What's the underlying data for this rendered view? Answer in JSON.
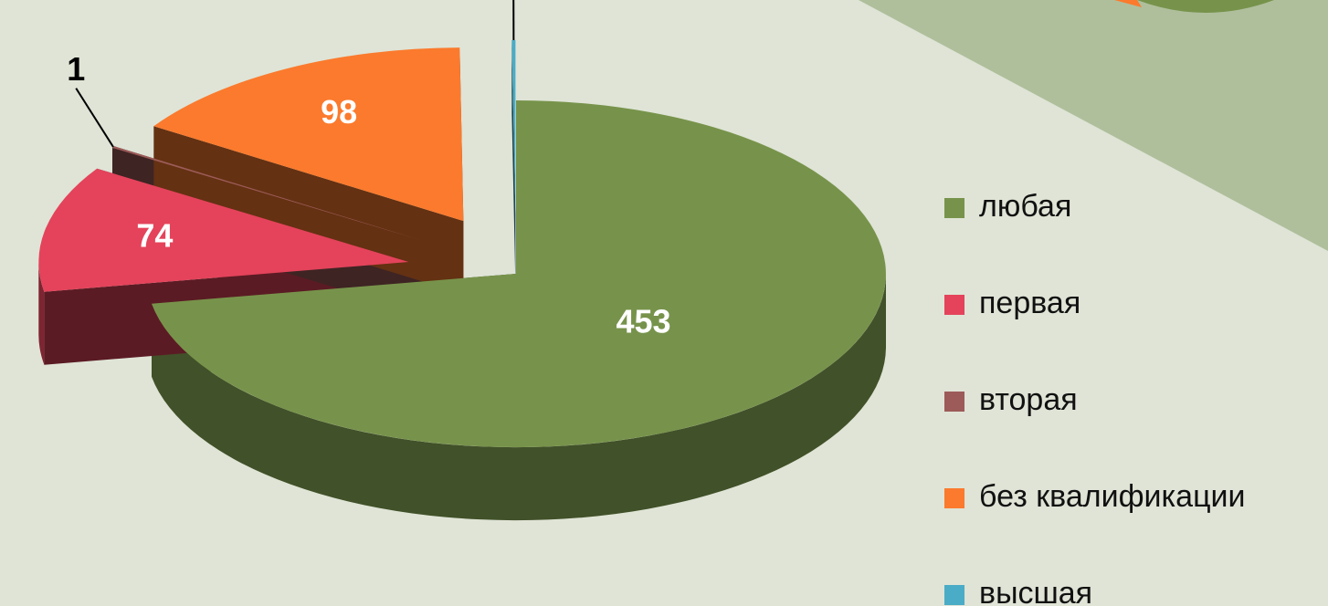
{
  "chart_data": {
    "type": "pie",
    "categories": [
      "любая",
      "первая",
      "вторая",
      "без квалификации",
      "высшая"
    ],
    "values": [
      453,
      74,
      1,
      98,
      1
    ],
    "colors": [
      "#77934b",
      "#e4435b",
      "#9c5b58",
      "#fb7a2d",
      "#4aacc6"
    ],
    "legend": "right"
  }
}
